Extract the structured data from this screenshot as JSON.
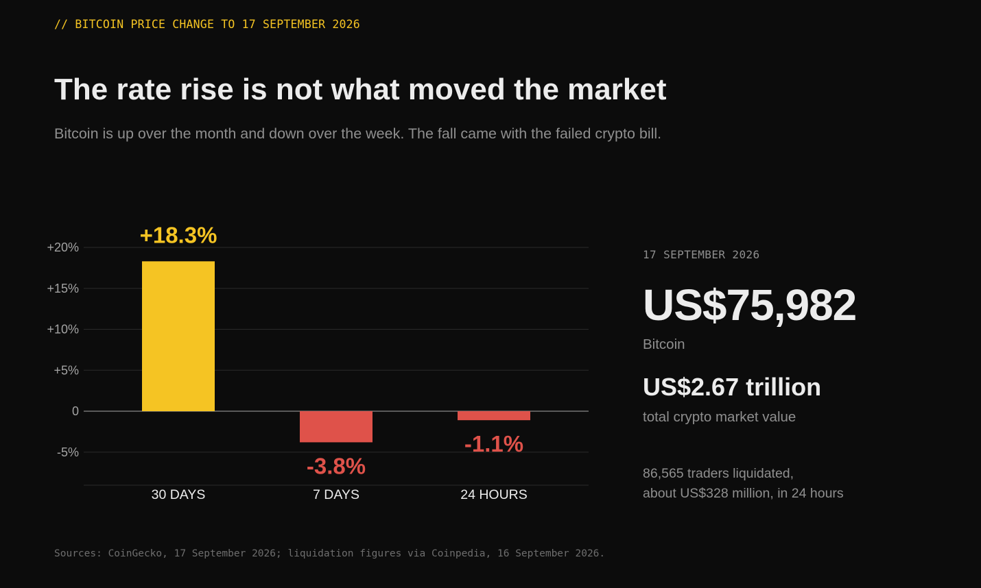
{
  "kicker": "// BITCOIN PRICE CHANGE TO 17 SEPTEMBER 2026",
  "headline": "The rate rise is not what moved the market",
  "dek": "Bitcoin is up over the month and down over the week. The fall came with the failed crypto bill.",
  "colors": {
    "background": "#0c0c0c",
    "positive": "#f5c423",
    "negative": "#df524a",
    "gridline": "#2a2a2a",
    "zero_line": "#5a5a5a",
    "axis_text": "#a3a3a3",
    "category_text": "#ececec"
  },
  "chart_data": {
    "type": "bar",
    "categories": [
      "30 DAYS",
      "7 DAYS",
      "24 HOURS"
    ],
    "values": [
      18.3,
      -3.8,
      -1.1
    ],
    "value_labels": [
      "+18.3%",
      "-3.8%",
      "-1.1%"
    ],
    "yticks": [
      20,
      15,
      10,
      5,
      0,
      -5
    ],
    "ytick_labels": [
      "+20%",
      "+15%",
      "+10%",
      "+5%",
      "0",
      "-5%"
    ],
    "ylim": [
      -9,
      20
    ],
    "grid": true,
    "legend": "none"
  },
  "side": {
    "date": "17 SEPTEMBER 2026",
    "price": "US$75,982",
    "price_label": "Bitcoin",
    "market_cap": "US$2.67 trillion",
    "market_cap_label": "total crypto market value",
    "liquidation_line1": "86,565 traders liquidated,",
    "liquidation_line2": "about US$328 million, in 24 hours"
  },
  "sources": "Sources: CoinGecko, 17 September 2026; liquidation figures via Coinpedia, 16 September 2026."
}
